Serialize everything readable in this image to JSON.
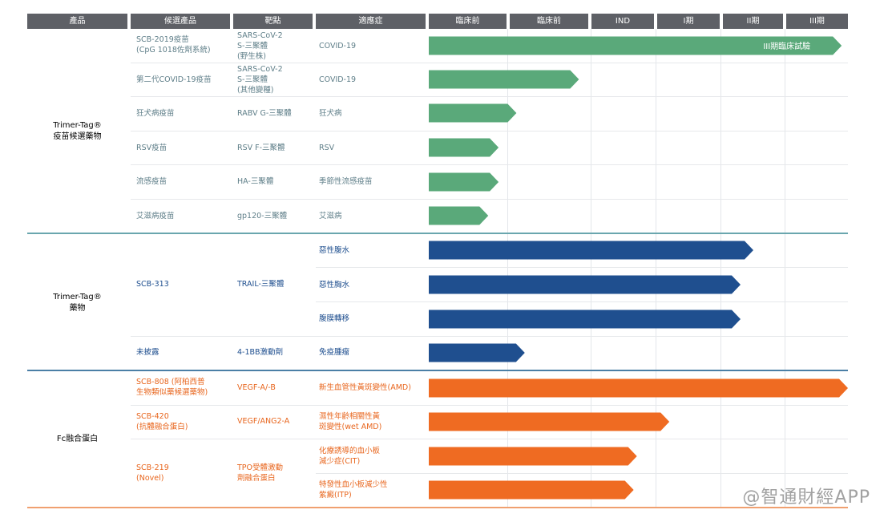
{
  "headers": [
    "產品",
    "候選產品",
    "靶點",
    "適應症",
    "臨床前",
    "臨床前",
    "IND",
    "I期",
    "II期",
    "III期"
  ],
  "groups": [
    {
      "name": "Trimer-Tag®\n疫苗候選藥物",
      "color": "#2d7d8c"
    },
    {
      "name": "Trimer-Tag®\n藥物",
      "color": "#1f4f8f"
    },
    {
      "name": "Fc融合蛋白",
      "color": "#e8661e"
    }
  ],
  "rows": [
    {
      "candidate": "SCB-2019疫苗\n(CpG 1018佐劑系統)",
      "target": "SARS-CoV-2\nS-三聚體\n(野生株)",
      "indication": "COVID-19",
      "bar_label": "III期臨床試驗"
    },
    {
      "candidate": "第二代COVID-19疫苗",
      "target": "SARS-CoV-2\nS-三聚體\n(其他變種)",
      "indication": "COVID-19",
      "bar_label": ""
    },
    {
      "candidate": "狂犬病疫苗",
      "target": "RABV G-三聚體",
      "indication": "狂犬病",
      "bar_label": ""
    },
    {
      "candidate": "RSV疫苗",
      "target": "RSV F-三聚體",
      "indication": "RSV",
      "bar_label": ""
    },
    {
      "candidate": "流感疫苗",
      "target": "HA-三聚體",
      "indication": "季節性流感疫苗",
      "bar_label": ""
    },
    {
      "candidate": "艾滋病疫苗",
      "target": "gp120-三聚體",
      "indication": "艾滋病",
      "bar_label": ""
    },
    {
      "candidate": "SCB-313",
      "target": "TRAIL-三聚體",
      "indication": "惡性腹水",
      "bar_label": ""
    },
    {
      "candidate": "",
      "target": "",
      "indication": "惡性胸水",
      "bar_label": ""
    },
    {
      "candidate": "",
      "target": "",
      "indication": "腹膜轉移",
      "bar_label": ""
    },
    {
      "candidate": "未披露",
      "target": "4-1BB激動劑",
      "indication": "免疫腫瘤",
      "bar_label": ""
    },
    {
      "candidate": "SCB-808 (阿柏西普\n生物類似藥候選藥物)",
      "target": "VEGF-A/-B",
      "indication": "新生血管性黃斑變性(AMD)",
      "bar_label": ""
    },
    {
      "candidate": "SCB-420\n(抗體融合蛋白)",
      "target": "VEGF/ANG2-A",
      "indication": "濕性年齡相關性黃\n斑變性(wet AMD)",
      "bar_label": ""
    },
    {
      "candidate": "SCB-219\n(Novel)",
      "target": "TPO受體激動\n劑融合蛋白",
      "indication": "化療誘導的血小板\n減少症(CIT)",
      "bar_label": ""
    },
    {
      "candidate": "",
      "target": "",
      "indication": "特發性血小板減少性\n紫癜(ITP)",
      "bar_label": ""
    }
  ],
  "watermark": "@智通財經APP",
  "chart_data": {
    "type": "bar",
    "orientation": "horizontal",
    "stages": [
      "臨床前",
      "臨床前",
      "IND",
      "I期",
      "II期",
      "III期"
    ],
    "categories": [
      "SCB-2019疫苗",
      "第二代COVID-19疫苗",
      "狂犬病疫苗",
      "RSV疫苗",
      "流感疫苗",
      "艾滋病疫苗",
      "SCB-313 惡性腹水",
      "SCB-313 惡性胸水",
      "SCB-313 腹膜轉移",
      "未披露",
      "SCB-808",
      "SCB-420",
      "SCB-219 CIT",
      "SCB-219 ITP"
    ],
    "values": [
      5.9,
      1.85,
      1.1,
      0.88,
      0.88,
      0.75,
      4.5,
      4.3,
      4.3,
      1.2,
      6.0,
      3.2,
      2.7,
      2.65
    ],
    "bar_colors": [
      "#5aa97a",
      "#5aa97a",
      "#5aa97a",
      "#5aa97a",
      "#5aa97a",
      "#5aa97a",
      "#1f4f8f",
      "#1f4f8f",
      "#1f4f8f",
      "#1f4f8f",
      "#ef6b22",
      "#ef6b22",
      "#ef6b22",
      "#ef6b22"
    ],
    "xlim": [
      0,
      6
    ],
    "grid": true
  }
}
